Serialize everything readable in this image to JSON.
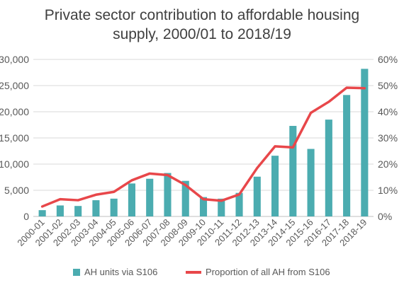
{
  "chart_data": {
    "type": "bar",
    "title_line1": "Private sector contribution to affordable housing",
    "title_line2": "supply, 2000/01 to 2018/19",
    "categories": [
      "2000-01",
      "2001-02",
      "2002-03",
      "2003-04",
      "2004-05",
      "2005-06",
      "2006-07",
      "2007-08",
      "2008-09",
      "2009-10",
      "2010-11",
      "2011-12",
      "2012-13",
      "2013-14",
      "2014-15",
      "2015-16",
      "2016-17",
      "2017-18",
      "2018-19"
    ],
    "series": [
      {
        "name": "AH units via S106",
        "type": "bar",
        "axis": "left",
        "color": "#4bacb0",
        "values": [
          1200,
          2100,
          2000,
          3100,
          3400,
          6300,
          7200,
          8300,
          6800,
          3700,
          3400,
          4500,
          7600,
          11600,
          17300,
          12900,
          18500,
          23200,
          28200
        ]
      },
      {
        "name": "Proportion of all AH from S106",
        "type": "line",
        "axis": "right",
        "color": "#e8474a",
        "values": [
          3.8,
          6.6,
          6.2,
          8.3,
          9.4,
          13.8,
          16.4,
          15.8,
          12.0,
          6.6,
          6.0,
          8.4,
          18.5,
          26.8,
          26.4,
          39.6,
          43.8,
          49.2,
          49.0
        ]
      }
    ],
    "y_left": {
      "min": 0,
      "max": 30000,
      "ticks": [
        "0",
        "5,000",
        "10,000",
        "15,000",
        "20,000",
        "25,000",
        "30,000"
      ]
    },
    "y_right": {
      "min": 0,
      "max": 60,
      "ticks": [
        "0%",
        "10%",
        "20%",
        "30%",
        "40%",
        "50%",
        "60%"
      ]
    },
    "grid": true,
    "legend_position": "bottom"
  }
}
